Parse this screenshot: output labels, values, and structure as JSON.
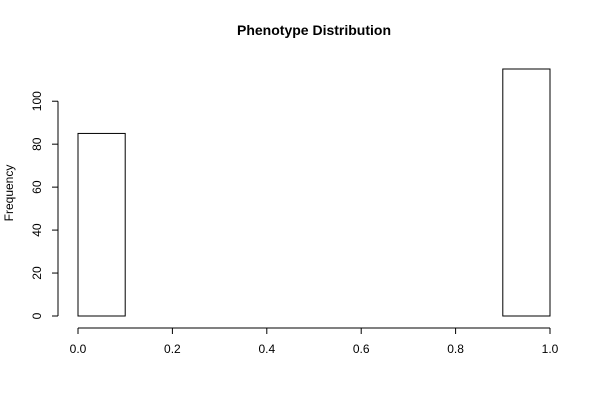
{
  "chart_data": {
    "type": "bar",
    "title": "Phenotype Distribution",
    "xlabel": "",
    "ylabel": "Frequency",
    "bin_edges": [
      0.0,
      0.1,
      0.2,
      0.3,
      0.4,
      0.5,
      0.6,
      0.7,
      0.8,
      0.9,
      1.0
    ],
    "values": [
      85,
      0,
      0,
      0,
      0,
      0,
      0,
      0,
      0,
      115
    ],
    "xlim": [
      0.0,
      1.0
    ],
    "ylim": [
      0,
      115
    ],
    "x_ticks": [
      0.0,
      0.2,
      0.4,
      0.6,
      0.8,
      1.0
    ],
    "x_tick_labels": [
      "0.0",
      "0.2",
      "0.4",
      "0.6",
      "0.8",
      "1.0"
    ],
    "y_ticks": [
      0,
      20,
      40,
      60,
      80,
      100
    ],
    "y_tick_labels": [
      "0",
      "20",
      "40",
      "60",
      "80",
      "100"
    ],
    "grid": false,
    "bar_fill": "#ffffff",
    "bar_stroke": "#000000"
  }
}
